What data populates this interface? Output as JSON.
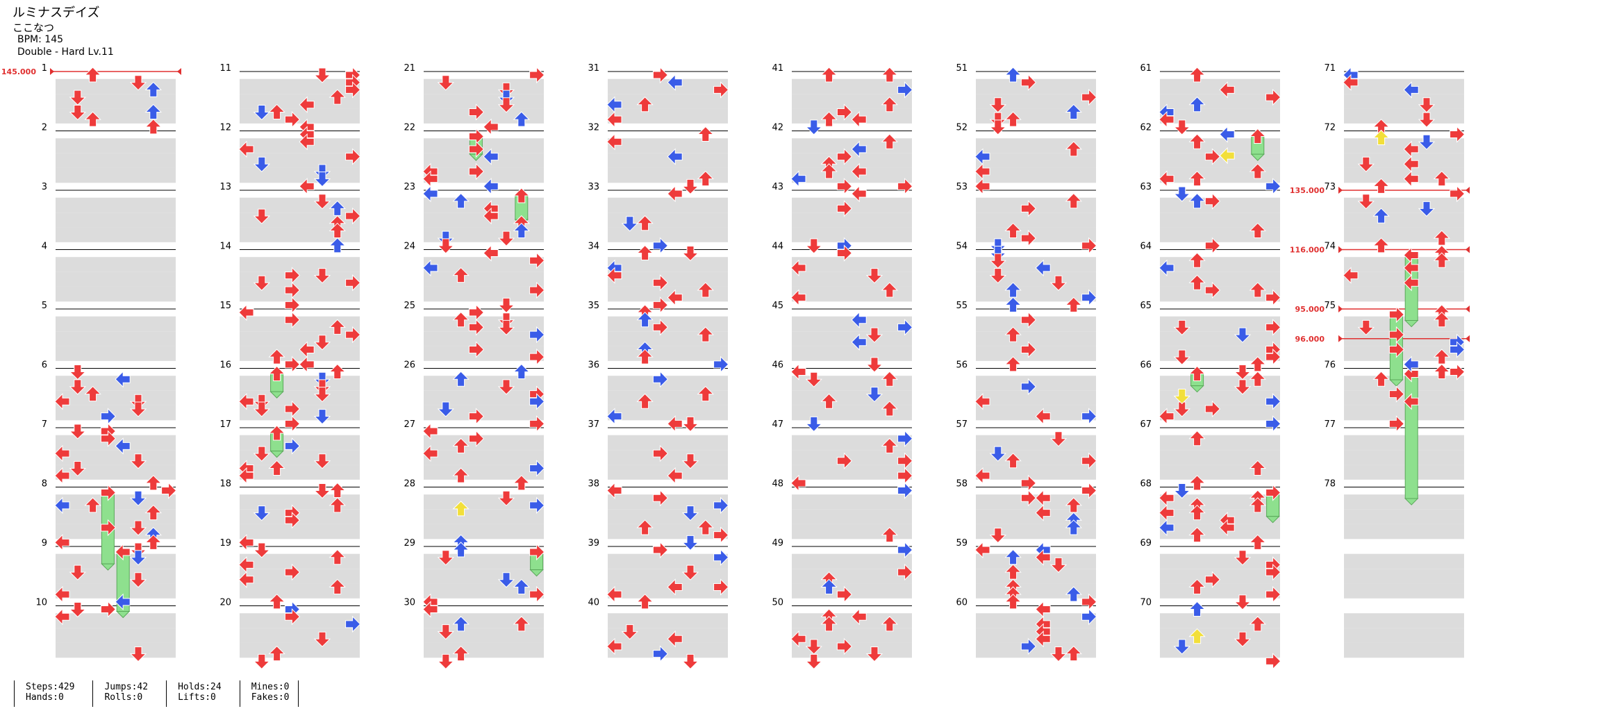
{
  "song": {
    "title": "ルミナスデイズ",
    "artist": "ここなつ",
    "bpm_text": "BPM: 145",
    "difficulty_text": "Double - Hard  Lv.11"
  },
  "chart": {
    "measure_labels": [
      "1",
      "2",
      "3",
      "4",
      "5",
      "6",
      "7",
      "8",
      "9",
      "10",
      "11",
      "12",
      "13",
      "14",
      "15",
      "16",
      "17",
      "18",
      "19",
      "20",
      "21",
      "22",
      "23",
      "24",
      "25",
      "26",
      "27",
      "28",
      "29",
      "30",
      "31",
      "32",
      "33",
      "34",
      "35",
      "36",
      "37",
      "38",
      "39",
      "40",
      "41",
      "42",
      "43",
      "44",
      "45",
      "46",
      "47",
      "48",
      "49",
      "50",
      "51",
      "52",
      "53",
      "54",
      "55",
      "56",
      "57",
      "58",
      "59",
      "60",
      "61",
      "62",
      "63",
      "64",
      "65",
      "66",
      "67",
      "68",
      "69",
      "70",
      "71",
      "72",
      "73",
      "74",
      "75",
      "76",
      "77",
      "78"
    ],
    "bpm_changes": [
      {
        "measure": 1,
        "label": "145.000"
      },
      {
        "measure": 73,
        "label": "135.000"
      },
      {
        "measure": 74,
        "label": "116.000"
      },
      {
        "measure": 75,
        "label": "95.000"
      },
      {
        "measure": 75.5,
        "label": "96.000"
      }
    ],
    "colors": {
      "red_note": "#ee3b3b",
      "blue_note": "#3a5ce8",
      "yellow_note": "#f2df3a",
      "hold": "#8ee08e",
      "bpm_line": "#e03030",
      "stripe": "#dcdcdc"
    }
  },
  "stats": [
    {
      "line1": "Steps:429",
      "line2": "Hands:0"
    },
    {
      "line1": "Jumps:42",
      "line2": "Rolls:0"
    },
    {
      "line1": "Holds:24",
      "line2": "Lifts:0"
    },
    {
      "line1": "Mines:0",
      "line2": "Fakes:0"
    }
  ]
}
